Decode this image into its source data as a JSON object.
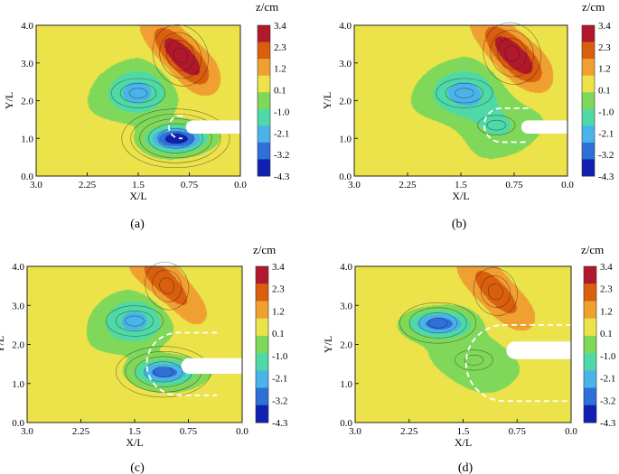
{
  "figure": {
    "colorbar_title": "z/cm",
    "colorbar_levels": [
      "3.4",
      "2.3",
      "1.2",
      "0.1",
      "-1.0",
      "-2.1",
      "-3.2",
      "-4.3"
    ],
    "colorbar_colors": [
      "#b2182b",
      "#d95f0e",
      "#f0a030",
      "#ece24a",
      "#7fd85a",
      "#4fd9a6",
      "#4ab3ea",
      "#2f6fd8",
      "#1020b0"
    ]
  },
  "chart_data": [
    {
      "type": "heatmap",
      "panel_label": "(a)",
      "xlabel": "X/L",
      "ylabel": "Y/L",
      "x_ticks": [
        "3.0",
        "2.25",
        "1.5",
        "0.75",
        "0.0"
      ],
      "y_ticks": [
        "0.0",
        "1.0",
        "2.0",
        "3.0",
        "4.0"
      ],
      "xlim": [
        3.0,
        0.0
      ],
      "ylim": [
        0.0,
        4.0
      ],
      "colorbar_ticks": [
        "3.4",
        "2.3",
        "1.2",
        "0.1",
        "-1.0",
        "-2.1",
        "-3.2",
        "-4.3"
      ],
      "features": [
        {
          "kind": "deposition_peak",
          "x": 0.88,
          "y": 3.2,
          "z": 3.4
        },
        {
          "kind": "scour_hole",
          "x": 1.5,
          "y": 2.2,
          "z": -2.4
        },
        {
          "kind": "scour_hole",
          "x": 0.95,
          "y": 1.0,
          "z": -4.3
        }
      ],
      "structure": {
        "x_from": 0.0,
        "x_to": 0.8,
        "y": 1.3,
        "width": 0.35
      },
      "boundary": {
        "x_from": 0.85,
        "x_to": 1.0,
        "y_from": 1.0,
        "y_to": 1.6
      }
    },
    {
      "type": "heatmap",
      "panel_label": "(b)",
      "xlabel": "X/L",
      "ylabel": "Y/L",
      "x_ticks": [
        "3.0",
        "2.25",
        "1.5",
        "0.75",
        "0.0"
      ],
      "y_ticks": [
        "0.0",
        "1.0",
        "2.0",
        "3.0",
        "4.0"
      ],
      "xlim": [
        3.0,
        0.0
      ],
      "ylim": [
        0.0,
        4.0
      ],
      "colorbar_ticks": [
        "3.4",
        "2.3",
        "1.2",
        "0.1",
        "-1.0",
        "-2.1",
        "-3.2",
        "-4.3"
      ],
      "features": [
        {
          "kind": "deposition_peak",
          "x": 0.78,
          "y": 3.25,
          "z": 3.4
        },
        {
          "kind": "scour_hole",
          "x": 1.45,
          "y": 2.2,
          "z": -2.4
        },
        {
          "kind": "scour_hole",
          "x": 1.0,
          "y": 1.35,
          "z": -1.2
        }
      ],
      "structure": {
        "x_from": 0.0,
        "x_to": 0.65,
        "y": 1.3,
        "width": 0.35
      },
      "boundary": {
        "x_from": 0.55,
        "x_to": 1.1,
        "y_from": 0.9,
        "y_to": 1.8
      }
    },
    {
      "type": "heatmap",
      "panel_label": "(c)",
      "xlabel": "X/L",
      "ylabel": "Y/L",
      "x_ticks": [
        "3.0",
        "2.25",
        "1.5",
        "0.75",
        "0.0"
      ],
      "y_ticks": [
        "0.0",
        "1.0",
        "2.0",
        "3.0",
        "4.0"
      ],
      "xlim": [
        3.0,
        0.0
      ],
      "ylim": [
        0.0,
        4.0
      ],
      "colorbar_ticks": [
        "3.4",
        "2.3",
        "1.2",
        "0.1",
        "-1.0",
        "-2.1",
        "-3.2",
        "-4.3"
      ],
      "features": [
        {
          "kind": "deposition_peak",
          "x": 1.05,
          "y": 3.5,
          "z": 2.4
        },
        {
          "kind": "scour_hole",
          "x": 1.5,
          "y": 2.6,
          "z": -2.2
        },
        {
          "kind": "scour_hole",
          "x": 1.1,
          "y": 1.3,
          "z": -3.5
        }
      ],
      "structure": {
        "x_from": 0.0,
        "x_to": 0.85,
        "y": 1.45,
        "width": 0.4
      },
      "boundary": {
        "x_from": 0.35,
        "x_to": 1.2,
        "y_from": 0.7,
        "y_to": 2.3
      }
    },
    {
      "type": "heatmap",
      "panel_label": "(d)",
      "xlabel": "X/L",
      "ylabel": "Y/L",
      "x_ticks": [
        "3.0",
        "2.25",
        "1.5",
        "0.75",
        "0.0"
      ],
      "y_ticks": [
        "0.0",
        "1.0",
        "2.0",
        "3.0",
        "4.0"
      ],
      "xlim": [
        3.0,
        0.0
      ],
      "ylim": [
        0.0,
        4.0
      ],
      "colorbar_ticks": [
        "3.4",
        "2.3",
        "1.2",
        "0.1",
        "-1.0",
        "-2.1",
        "-3.2",
        "-4.3"
      ],
      "features": [
        {
          "kind": "deposition_peak",
          "x": 1.05,
          "y": 3.35,
          "z": 2.2
        },
        {
          "kind": "scour_hole",
          "x": 1.85,
          "y": 2.55,
          "z": -3.4
        },
        {
          "kind": "scour_hole",
          "x": 1.35,
          "y": 1.6,
          "z": -1.3
        }
      ],
      "structure": {
        "x_from": 0.0,
        "x_to": 0.9,
        "y": 1.85,
        "width": 0.45
      },
      "boundary": {
        "x_from": 0.0,
        "x_to": 1.3,
        "y_from": 0.55,
        "y_to": 2.5
      }
    }
  ]
}
